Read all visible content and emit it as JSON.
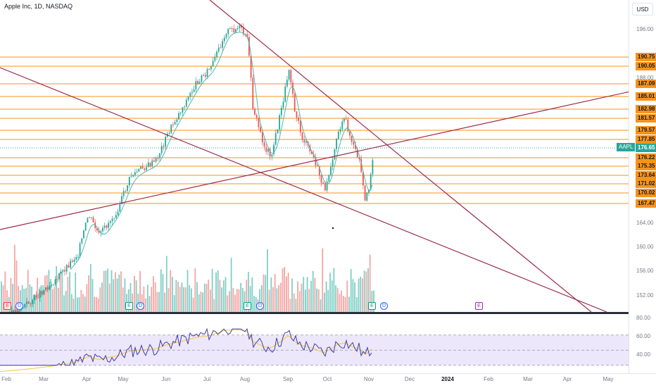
{
  "header": {
    "symbol_title": "Apple Inc, 1D, NASDAQ",
    "currency": "USD"
  },
  "price_axis": {
    "ticks": [
      {
        "label": "196.00",
        "value": 196
      },
      {
        "label": "188.00",
        "value": 188
      },
      {
        "label": "164.00",
        "value": 164
      },
      {
        "label": "160.00",
        "value": 160
      },
      {
        "label": "156.00",
        "value": 156
      },
      {
        "label": "152.00",
        "value": 152
      }
    ],
    "levels": [
      {
        "label": "190.75",
        "value": 190.75
      },
      {
        "label": "190.05",
        "value": 190.05
      },
      {
        "label": "187.09",
        "value": 187.09
      },
      {
        "label": "185.01",
        "value": 185.01
      },
      {
        "label": "182.98",
        "value": 182.98
      },
      {
        "label": "181.57",
        "value": 181.57
      },
      {
        "label": "179.57",
        "value": 179.57
      },
      {
        "label": "177.85",
        "value": 177.85
      },
      {
        "label": "176.22",
        "value": 176.22
      },
      {
        "label": "175.35",
        "value": 175.35
      },
      {
        "label": "173.64",
        "value": 173.64
      },
      {
        "label": "171.02",
        "value": 171.02
      },
      {
        "label": "170.02",
        "value": 170.02
      },
      {
        "label": "167.47",
        "value": 167.47
      }
    ],
    "last_price": {
      "symbol": "AAPL",
      "label": "176.65",
      "value": 176.65
    }
  },
  "rsi_axis": {
    "ticks": [
      {
        "label": "80.00",
        "value": 80
      },
      {
        "label": "60.00",
        "value": 60
      },
      {
        "label": "40.00",
        "value": 40
      }
    ]
  },
  "time_axis": {
    "months": [
      {
        "label": "Feb",
        "bold": false
      },
      {
        "label": "Mar",
        "bold": false
      },
      {
        "label": "Apr",
        "bold": false
      },
      {
        "label": "May",
        "bold": false
      },
      {
        "label": "Jun",
        "bold": false
      },
      {
        "label": "Jul",
        "bold": false
      },
      {
        "label": "Aug",
        "bold": false
      },
      {
        "label": "Sep",
        "bold": false
      },
      {
        "label": "Oct",
        "bold": false
      },
      {
        "label": "Nov",
        "bold": false
      },
      {
        "label": "Dec",
        "bold": false
      },
      {
        "label": "2024",
        "bold": true
      },
      {
        "label": "Feb",
        "bold": false
      },
      {
        "label": "Mar",
        "bold": false
      },
      {
        "label": "Apr",
        "bold": false
      },
      {
        "label": "May",
        "bold": false
      }
    ]
  },
  "events": [
    {
      "type": "E",
      "color": "#f23645"
    },
    {
      "type": "D",
      "color": "#2962ff"
    },
    {
      "type": "E",
      "color": "#089981"
    },
    {
      "type": "D",
      "color": "#2962ff"
    },
    {
      "type": "E",
      "color": "#089981"
    },
    {
      "type": "D",
      "color": "#2962ff"
    },
    {
      "type": "E",
      "color": "#089981"
    },
    {
      "type": "D",
      "color": "#2962ff"
    },
    {
      "type": "E",
      "color": "#9c27b0"
    }
  ],
  "colors": {
    "up": "#26a69a",
    "down": "#ef5350",
    "vol_up": "#7fcfc6",
    "vol_down": "#f4a6a4",
    "level_line": "#f7931a",
    "trendline": "#9c2b4a",
    "ma": "#4fb7b0",
    "rsi_line": "#3f3fa6",
    "rsi_ma": "#f5c73c",
    "rsi_band": "#ede7fb"
  }
}
